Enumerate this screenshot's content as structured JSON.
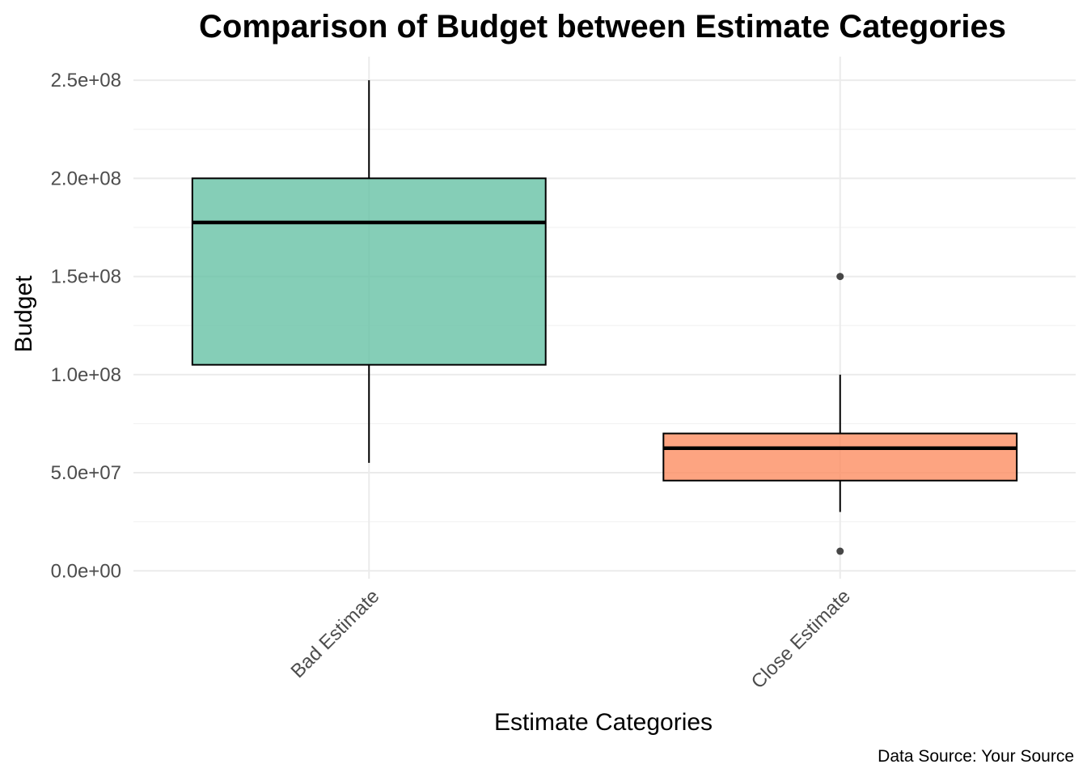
{
  "chart_data": {
    "type": "boxplot",
    "title": "Comparison of Budget between Estimate Categories",
    "xlabel": "Estimate Categories",
    "ylabel": "Budget",
    "caption": "Data Source: Your Source",
    "ylim": [
      -4000000,
      262000000
    ],
    "y_ticks": [
      0,
      50000000,
      100000000,
      150000000,
      200000000,
      250000000
    ],
    "y_tick_labels": [
      "0.0e+00",
      "5.0e+07",
      "1.0e+08",
      "1.5e+08",
      "2.0e+08",
      "2.5e+08"
    ],
    "y_minor_ticks": [
      25000000,
      75000000,
      125000000,
      175000000,
      225000000
    ],
    "categories": [
      "Bad Estimate",
      "Close Estimate"
    ],
    "boxes": [
      {
        "category": "Bad Estimate",
        "whisker_low": 55000000,
        "q1": 105000000,
        "median": 177500000,
        "q3": 200000000,
        "whisker_high": 250000000,
        "outliers": [],
        "fill": "#66c2a5"
      },
      {
        "category": "Close Estimate",
        "whisker_low": 30000000,
        "q1": 46000000,
        "median": 62500000,
        "q3": 70000000,
        "whisker_high": 100000000,
        "outliers": [
          150000000,
          10000000
        ],
        "fill": "#fc8d62"
      }
    ],
    "grid": true,
    "legend": "none"
  }
}
